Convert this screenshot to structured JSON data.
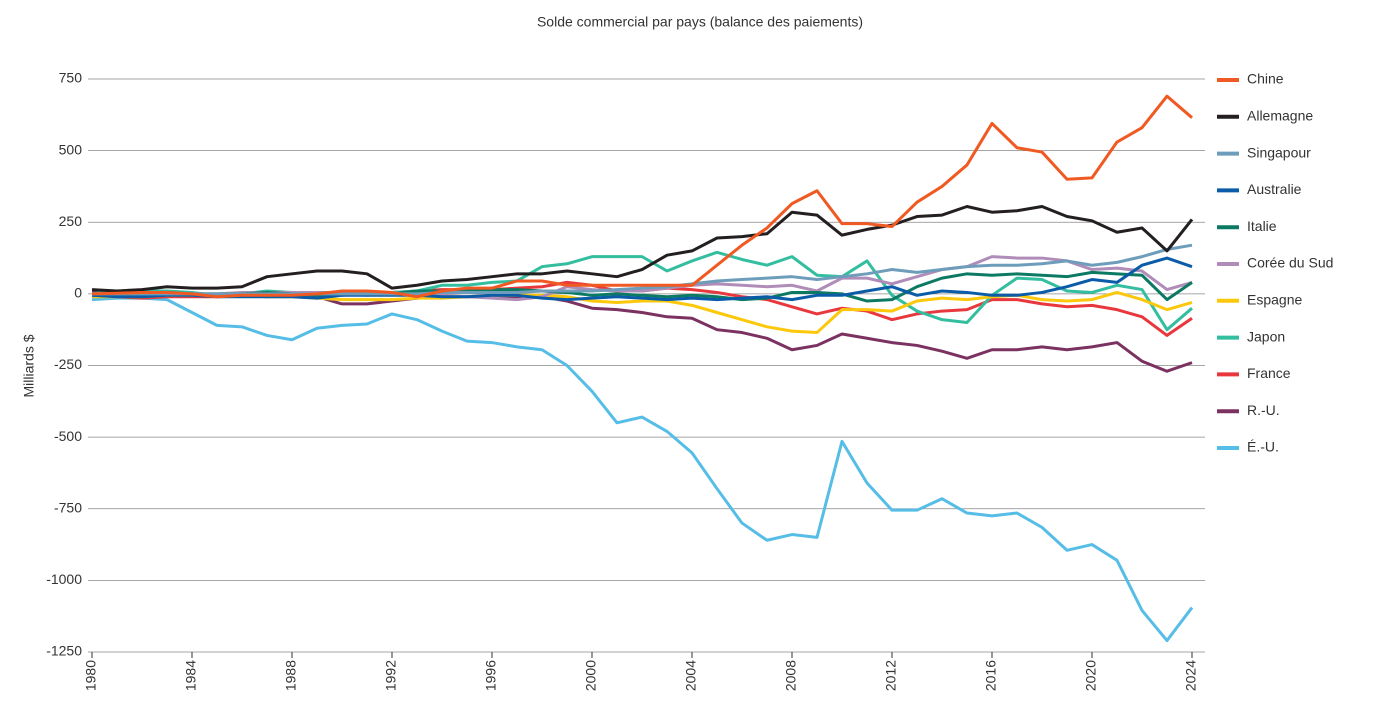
{
  "chart_data": {
    "type": "line",
    "title": "Solde commercial par pays (balance des paiements)",
    "y_label": "Milliards $",
    "x": [
      1980,
      1981,
      1982,
      1983,
      1984,
      1985,
      1986,
      1987,
      1988,
      1989,
      1990,
      1991,
      1992,
      1993,
      1994,
      1995,
      1996,
      1997,
      1998,
      1999,
      2000,
      2001,
      2002,
      2003,
      2004,
      2005,
      2006,
      2007,
      2008,
      2009,
      2010,
      2011,
      2012,
      2013,
      2014,
      2015,
      2016,
      2017,
      2018,
      2019,
      2020,
      2021,
      2022,
      2023,
      2024
    ],
    "xlim": [
      1980,
      2024
    ],
    "xticks": [
      1980,
      1984,
      1988,
      1992,
      1996,
      2000,
      2004,
      2008,
      2012,
      2016,
      2020,
      2024
    ],
    "ylim": [
      -1250,
      750
    ],
    "yticks": [
      750,
      500,
      250,
      0,
      -250,
      -500,
      -750,
      -1000,
      -1250
    ],
    "grid": true,
    "legend": "right",
    "series": [
      {
        "name": "Chine",
        "color": "#f05a22",
        "values": [
          0,
          2,
          5,
          5,
          0,
          -10,
          -5,
          -5,
          -5,
          0,
          10,
          10,
          5,
          -10,
          10,
          20,
          20,
          45,
          45,
          30,
          30,
          30,
          30,
          30,
          30,
          100,
          170,
          230,
          315,
          360,
          245,
          245,
          235,
          320,
          375,
          450,
          595,
          510,
          495,
          400,
          405,
          530,
          580,
          690,
          615
        ]
      },
      {
        "name": "Allemagne",
        "color": "#231f20",
        "values": [
          15,
          10,
          15,
          25,
          20,
          20,
          25,
          60,
          70,
          80,
          80,
          70,
          20,
          30,
          45,
          50,
          60,
          70,
          70,
          80,
          70,
          60,
          85,
          135,
          150,
          195,
          200,
          210,
          285,
          275,
          205,
          225,
          240,
          270,
          275,
          305,
          285,
          290,
          305,
          270,
          255,
          215,
          230,
          150,
          260
        ]
      },
      {
        "name": "Singapour",
        "color": "#6d9dba",
        "values": [
          0,
          0,
          0,
          0,
          0,
          0,
          0,
          0,
          0,
          0,
          0,
          0,
          0,
          0,
          5,
          5,
          5,
          5,
          10,
          10,
          10,
          15,
          20,
          25,
          35,
          45,
          50,
          55,
          60,
          50,
          60,
          70,
          85,
          75,
          85,
          95,
          100,
          100,
          105,
          115,
          100,
          110,
          130,
          155,
          170
        ]
      },
      {
        "name": "Australie",
        "color": "#0a5ca8",
        "values": [
          -5,
          -10,
          -10,
          -5,
          -5,
          -10,
          -10,
          -10,
          -10,
          -15,
          -5,
          -5,
          -5,
          -5,
          -10,
          -10,
          -5,
          -5,
          -15,
          -20,
          -15,
          -10,
          -15,
          -20,
          -15,
          -20,
          -15,
          -10,
          -20,
          -5,
          -5,
          10,
          25,
          -5,
          10,
          5,
          -5,
          -5,
          5,
          25,
          50,
          40,
          100,
          125,
          95
        ]
      },
      {
        "name": "Italie",
        "color": "#0c7a63",
        "values": [
          -5,
          -5,
          0,
          5,
          0,
          0,
          0,
          5,
          0,
          -5,
          0,
          0,
          0,
          10,
          10,
          10,
          15,
          15,
          10,
          5,
          -5,
          0,
          -5,
          -10,
          -5,
          -10,
          -20,
          -15,
          5,
          5,
          0,
          -25,
          -20,
          25,
          55,
          70,
          65,
          70,
          65,
          60,
          75,
          70,
          65,
          -20,
          40
        ]
      },
      {
        "name": "Corée du Sud",
        "color": "#b08cb8",
        "values": [
          -5,
          -5,
          -5,
          0,
          0,
          0,
          5,
          5,
          5,
          5,
          0,
          -5,
          0,
          0,
          -5,
          -10,
          -15,
          -20,
          -10,
          25,
          15,
          10,
          10,
          20,
          30,
          35,
          30,
          25,
          30,
          10,
          55,
          55,
          35,
          60,
          85,
          95,
          130,
          125,
          125,
          115,
          85,
          90,
          80,
          15,
          40
        ]
      },
      {
        "name": "Espagne",
        "color": "#fbc80b",
        "values": [
          -10,
          -10,
          -10,
          -5,
          -5,
          -5,
          -5,
          -10,
          -10,
          -15,
          -20,
          -20,
          -20,
          -15,
          -15,
          -10,
          -5,
          -5,
          -5,
          -10,
          -25,
          -30,
          -25,
          -25,
          -40,
          -65,
          -90,
          -115,
          -130,
          -135,
          -55,
          -55,
          -60,
          -25,
          -15,
          -20,
          -10,
          -5,
          -20,
          -25,
          -20,
          5,
          -20,
          -55,
          -30
        ]
      },
      {
        "name": "Japon",
        "color": "#34bea0",
        "values": [
          0,
          10,
          10,
          10,
          5,
          -5,
          0,
          10,
          5,
          5,
          5,
          5,
          5,
          10,
          30,
          30,
          40,
          45,
          95,
          105,
          130,
          130,
          130,
          80,
          115,
          145,
          120,
          100,
          130,
          65,
          60,
          115,
          -5,
          -60,
          -90,
          -100,
          -5,
          55,
          50,
          10,
          5,
          30,
          15,
          -125,
          -50
        ]
      },
      {
        "name": "France",
        "color": "#e8383d",
        "values": [
          -5,
          -10,
          -15,
          -10,
          -10,
          -10,
          -5,
          -5,
          0,
          0,
          -5,
          0,
          5,
          10,
          15,
          15,
          15,
          20,
          25,
          40,
          30,
          10,
          10,
          20,
          15,
          5,
          -10,
          -20,
          -45,
          -70,
          -50,
          -60,
          -90,
          -70,
          -60,
          -55,
          -20,
          -20,
          -35,
          -45,
          -40,
          -55,
          -80,
          -145,
          -85
        ]
      },
      {
        "name": "R.-U.",
        "color": "#7b3260",
        "values": [
          5,
          5,
          10,
          0,
          -5,
          -5,
          -5,
          -10,
          -5,
          -10,
          -35,
          -35,
          -25,
          -15,
          -10,
          -10,
          -10,
          -10,
          -10,
          -25,
          -50,
          -55,
          -65,
          -80,
          -85,
          -125,
          -135,
          -155,
          -195,
          -180,
          -140,
          -155,
          -170,
          -180,
          -200,
          -225,
          -195,
          -195,
          -185,
          -195,
          -185,
          -170,
          -235,
          -270,
          -240
        ]
      },
      {
        "name": "É.-U.",
        "color": "#56bde6",
        "values": [
          -20,
          -15,
          -15,
          -20,
          -65,
          -110,
          -115,
          -145,
          -160,
          -120,
          -110,
          -105,
          -70,
          -90,
          -130,
          -165,
          -170,
          -185,
          -195,
          -250,
          -340,
          -450,
          -430,
          -480,
          -555,
          -680,
          -800,
          -860,
          -840,
          -850,
          -515,
          -660,
          -755,
          -755,
          -715,
          -765,
          -775,
          -765,
          -815,
          -895,
          -875,
          -930,
          -1105,
          -1210,
          -1095
        ]
      }
    ]
  }
}
